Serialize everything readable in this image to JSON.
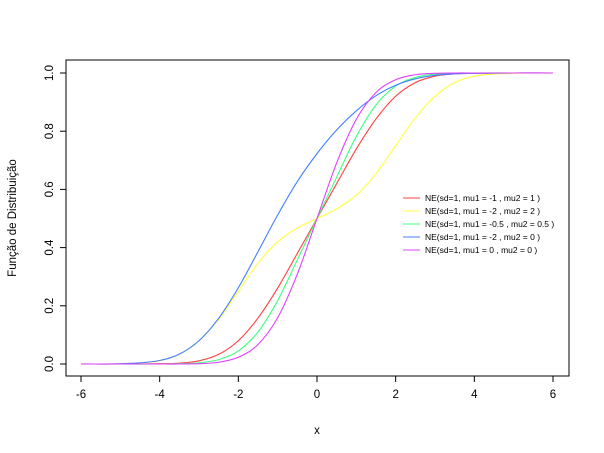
{
  "chart_data": {
    "type": "line",
    "title": "",
    "xlabel": "x",
    "ylabel": "Função de Distribuição",
    "xlim": [
      -6,
      6
    ],
    "ylim": [
      0,
      1
    ],
    "xticks": [
      -6,
      -4,
      -2,
      0,
      2,
      4,
      6
    ],
    "xtick_labels": [
      "-6",
      "-4",
      "-2",
      "0",
      "2",
      "4",
      "6"
    ],
    "yticks": [
      0,
      0.2,
      0.4,
      0.6,
      0.8,
      1
    ],
    "ytick_labels": [
      "0.0",
      "0.2",
      "0.4",
      "0.6",
      "0.8",
      "1.0"
    ],
    "grid": false,
    "legend_position": "right",
    "x": [
      -6,
      -5,
      -4,
      -3.5,
      -3,
      -2.5,
      -2,
      -1.5,
      -1,
      -0.5,
      0,
      0.5,
      1,
      1.5,
      2,
      2.5,
      3,
      3.5,
      4,
      5,
      6
    ],
    "series": [
      {
        "name": "NE(sd=1, mu1 = -1 , mu2 = 1 )",
        "color": "#ff4040",
        "values": [
          0.0,
          0.0,
          0.001,
          0.003,
          0.011,
          0.033,
          0.08,
          0.158,
          0.261,
          0.38,
          0.5,
          0.62,
          0.739,
          0.842,
          0.92,
          0.967,
          0.989,
          0.997,
          0.999,
          1.0,
          1.0
        ]
      },
      {
        "name": "NE(sd=1, mu1 = -2 , mu2 = 2 )",
        "color": "#ffff40",
        "values": [
          0.0,
          0.001,
          0.011,
          0.033,
          0.08,
          0.154,
          0.25,
          0.346,
          0.42,
          0.467,
          0.5,
          0.533,
          0.58,
          0.654,
          0.75,
          0.846,
          0.92,
          0.967,
          0.989,
          0.999,
          1.0
        ]
      },
      {
        "name": "NE(sd=1, mu1 = -0.5 , mu2 = 0.5 )",
        "color": "#40ff80",
        "values": [
          0.0,
          0.0,
          0.0,
          0.001,
          0.004,
          0.015,
          0.045,
          0.11,
          0.218,
          0.358,
          0.5,
          0.642,
          0.782,
          0.89,
          0.955,
          0.985,
          0.996,
          0.999,
          1.0,
          1.0,
          1.0
        ]
      },
      {
        "name": "NE(sd=1, mu1 = -2 , mu2 = 0 )",
        "color": "#4080ff",
        "values": [
          0.0,
          0.001,
          0.012,
          0.034,
          0.08,
          0.157,
          0.262,
          0.386,
          0.512,
          0.627,
          0.723,
          0.804,
          0.87,
          0.922,
          0.958,
          0.98,
          0.992,
          0.997,
          0.999,
          1.0,
          1.0
        ]
      },
      {
        "name": "NE(sd=1, mu1 = 0 , mu2 = 0 )",
        "color": "#e040ff",
        "values": [
          0.0,
          0.0,
          0.0,
          0.0,
          0.001,
          0.006,
          0.023,
          0.067,
          0.159,
          0.309,
          0.5,
          0.691,
          0.841,
          0.933,
          0.977,
          0.994,
          0.999,
          1.0,
          1.0,
          1.0,
          1.0
        ]
      }
    ]
  }
}
